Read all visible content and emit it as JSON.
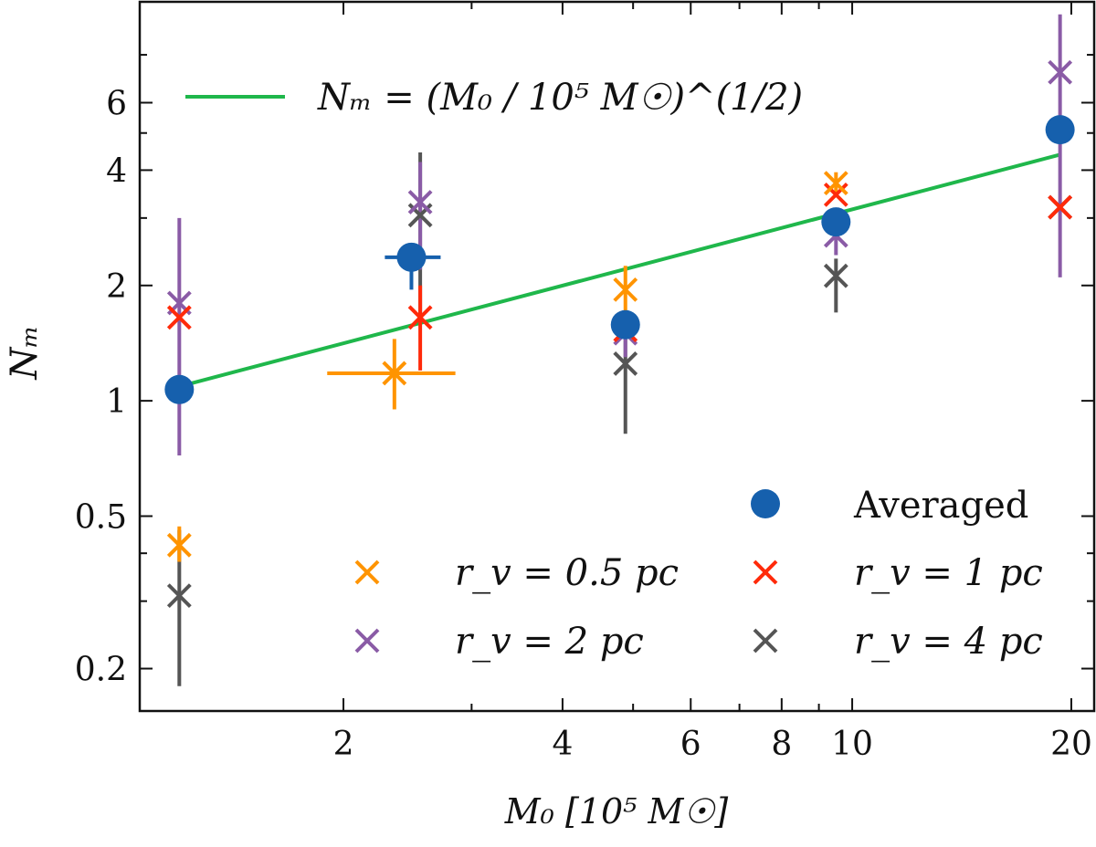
{
  "chart_data": {
    "type": "scatter",
    "xlabel": "M₀ [10⁵ M☉]",
    "ylabel": "Nₘ",
    "xscale": "log",
    "yscale": "log",
    "xlim": [
      1.05,
      21.5
    ],
    "ylim": [
      0.155,
      11.0
    ],
    "x_ticks": [
      2,
      4,
      6,
      8,
      10,
      20
    ],
    "y_ticks": [
      0.2,
      0.5,
      1,
      2,
      4,
      6
    ],
    "legend": {
      "placement": "lower-right",
      "entries": [
        "Averaged",
        "r_v = 0.5 pc",
        "r_v = 1 pc",
        "r_v = 2 pc",
        "r_v = 4 pc"
      ]
    },
    "fit_line": {
      "label": "Nₘ = (M₀ / 10⁵ M☉)^(1/2)",
      "color": "#1fb74b",
      "points": [
        [
          1.19,
          1.09
        ],
        [
          19.3,
          4.39
        ]
      ]
    },
    "series": [
      {
        "name": "Averaged",
        "marker": "circle",
        "color": "#1660ad",
        "points": [
          {
            "x": 1.19,
            "y": 1.07
          },
          {
            "x": 2.48,
            "y": 2.37,
            "xerr": [
              2.28,
              2.72
            ],
            "yerr": [
              1.95,
              2.55
            ]
          },
          {
            "x": 4.88,
            "y": 1.58
          },
          {
            "x": 9.5,
            "y": 2.93
          },
          {
            "x": 19.3,
            "y": 5.1
          }
        ]
      },
      {
        "name": "r_v = 0.5 pc",
        "marker": "x",
        "color": "#ff9400",
        "points": [
          {
            "x": 1.19,
            "y": 0.42,
            "yerr": [
              0.38,
              0.47
            ]
          },
          {
            "x": 2.35,
            "y": 1.18,
            "xerr": [
              1.9,
              2.85
            ],
            "yerr": [
              0.95,
              1.45
            ]
          },
          {
            "x": 4.88,
            "y": 1.95,
            "yerr": [
              1.7,
              2.25
            ]
          },
          {
            "x": 9.5,
            "y": 3.7,
            "yerr": [
              3.4,
              3.95
            ]
          }
        ]
      },
      {
        "name": "r_v = 1 pc",
        "marker": "x",
        "color": "#ff2a0a",
        "points": [
          {
            "x": 1.19,
            "y": 1.65
          },
          {
            "x": 2.55,
            "y": 1.65,
            "yerr": [
              1.2,
              2.0
            ]
          },
          {
            "x": 4.88,
            "y": 1.53
          },
          {
            "x": 9.5,
            "y": 3.45
          },
          {
            "x": 19.3,
            "y": 3.2
          }
        ]
      },
      {
        "name": "r_v = 2 pc",
        "marker": "x",
        "color": "#8a5ba6",
        "points": [
          {
            "x": 1.19,
            "y": 1.8,
            "yerr": [
              0.72,
              3.0
            ]
          },
          {
            "x": 2.55,
            "y": 3.3,
            "yerr": [
              2.2,
              4.2
            ]
          },
          {
            "x": 4.88,
            "y": 1.5,
            "yerr": [
              1.3,
              1.7
            ]
          },
          {
            "x": 9.5,
            "y": 2.7,
            "yerr": [
              2.4,
              3.0
            ]
          },
          {
            "x": 19.3,
            "y": 7.2,
            "yerr": [
              2.1,
              10.2
            ]
          }
        ]
      },
      {
        "name": "r_v = 4 pc",
        "marker": "x",
        "color": "#555555",
        "points": [
          {
            "x": 1.19,
            "y": 0.31,
            "yerr": [
              0.18,
              0.46
            ]
          },
          {
            "x": 2.55,
            "y": 3.05,
            "yerr": [
              1.6,
              4.45
            ]
          },
          {
            "x": 4.88,
            "y": 1.25,
            "yerr": [
              0.82,
              1.45
            ]
          },
          {
            "x": 9.5,
            "y": 2.12,
            "yerr": [
              1.7,
              2.35
            ]
          },
          {
            "x": 19.3,
            "y": 3.2
          }
        ]
      }
    ]
  }
}
